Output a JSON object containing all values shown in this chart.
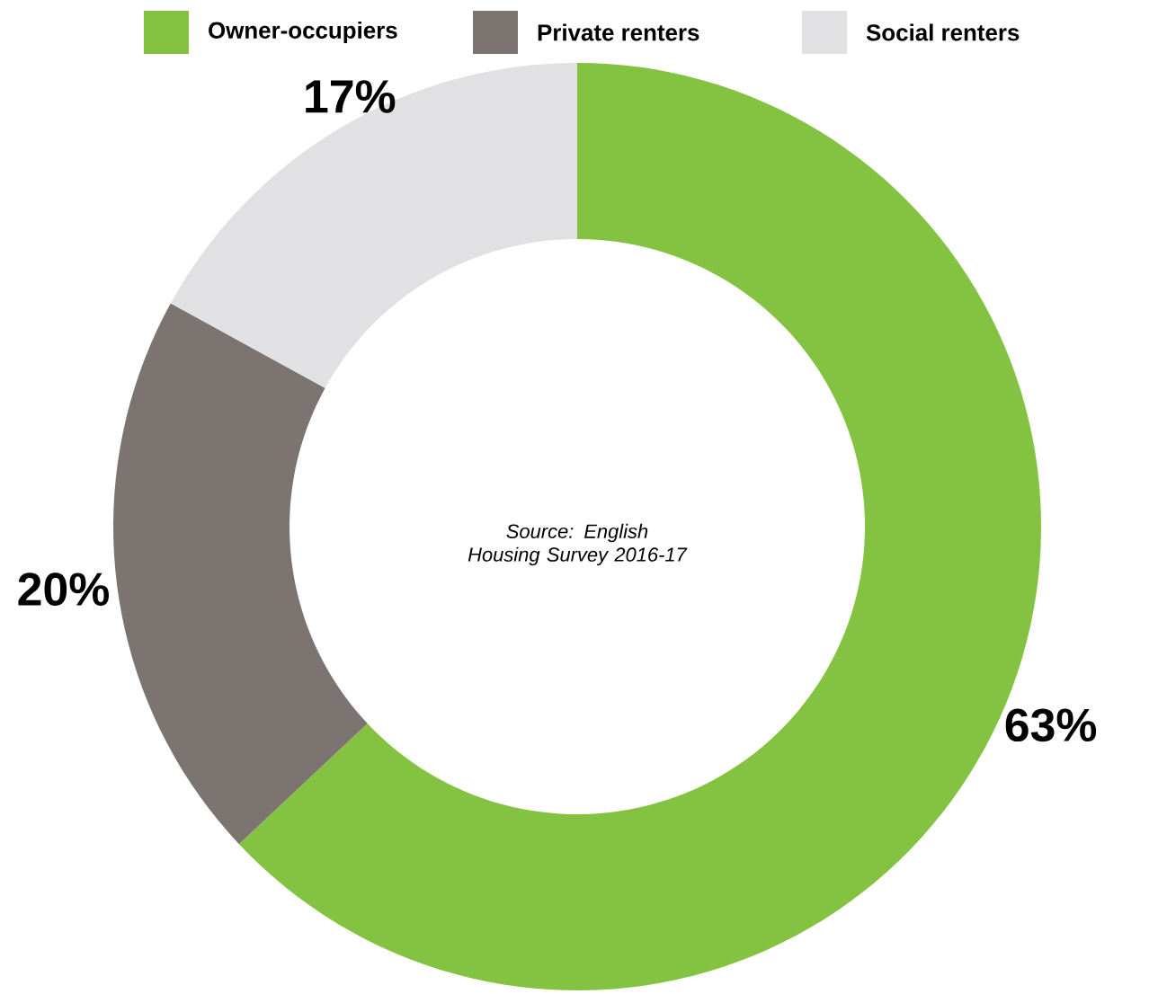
{
  "chart_data": {
    "type": "donut",
    "categories": [
      "Owner-occupiers",
      "Private renters",
      "Social renters"
    ],
    "values": [
      63,
      20,
      17
    ],
    "colors": [
      "#84c341",
      "#7b7470",
      "#e1e1e3"
    ],
    "value_labels": [
      "63%",
      "20%",
      "17%"
    ],
    "legend": "top",
    "annotations": [
      "Source: English Housing Survey 2016-17"
    ]
  }
}
